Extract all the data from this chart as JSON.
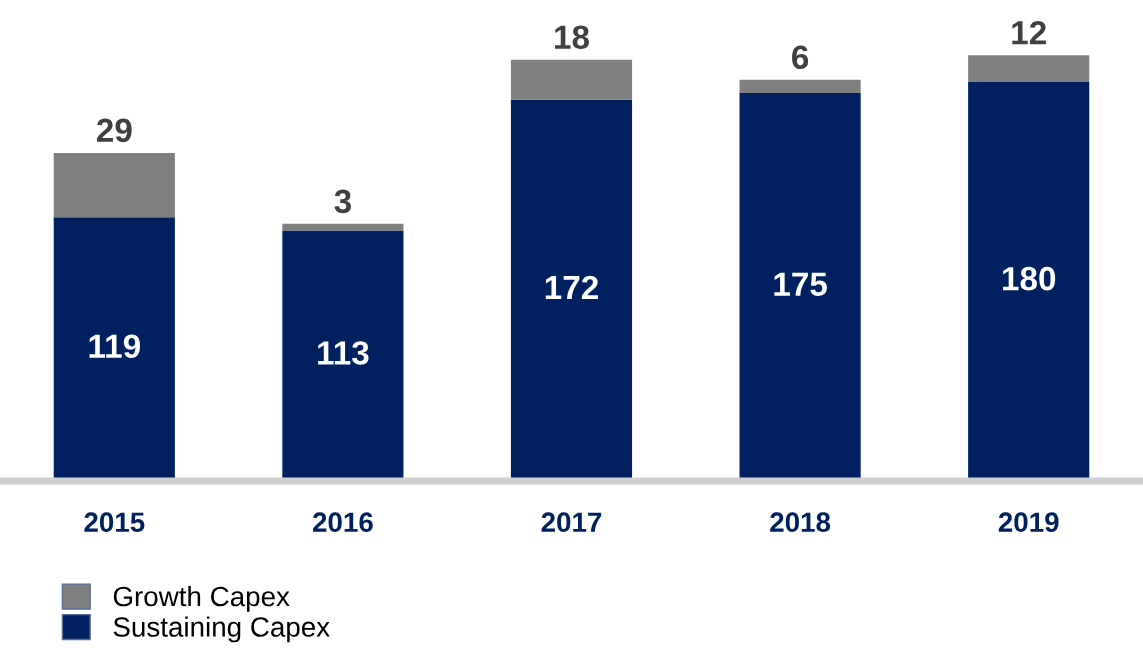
{
  "chart_data": {
    "type": "bar",
    "stacked": true,
    "data_labels": true,
    "legend": "bottom left",
    "grid": false,
    "categories": [
      "2015",
      "2016",
      "2017",
      "2018",
      "2019"
    ],
    "series": [
      {
        "name": "Sustaining Capex",
        "color": "#002060",
        "values": [
          119,
          113,
          172,
          175,
          180
        ]
      },
      {
        "name": "Growth Capex",
        "color": "#808080",
        "values": [
          29,
          3,
          18,
          6,
          12
        ]
      }
    ]
  }
}
